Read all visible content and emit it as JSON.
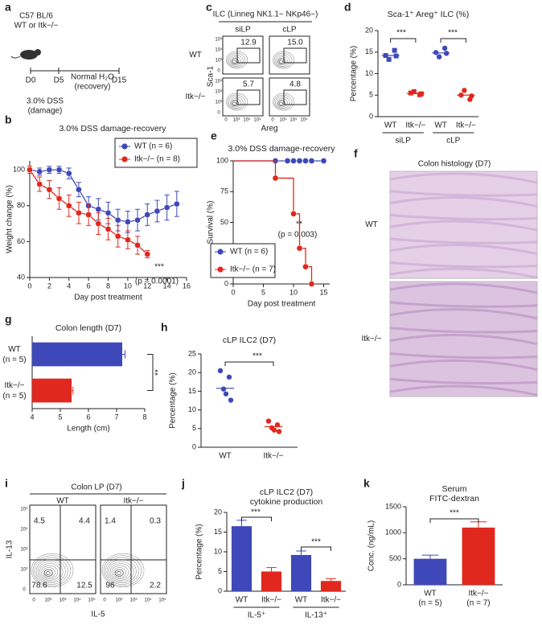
{
  "panel_labels": [
    "a",
    "b",
    "c",
    "d",
    "e",
    "f",
    "g",
    "h",
    "i",
    "j",
    "k"
  ],
  "timeline": {
    "strain": "C57 BL/6",
    "genotype": "WT or Itk−/−",
    "days": [
      "D0",
      "D5",
      "D15"
    ],
    "phases": [
      [
        "3.0% DSS",
        "(damage)"
      ],
      [
        "Normal H₂O",
        "(recovery)"
      ]
    ]
  },
  "flow_c": {
    "title": "ILC (Linneg NK1.1− NKp46−)",
    "columns": [
      "siLP",
      "cLP"
    ],
    "rows": [
      "WT",
      "Itk−/−"
    ],
    "gates": [
      [
        "12.9",
        "15.0"
      ],
      [
        "5.7",
        "4.8"
      ]
    ],
    "y_label": "Sca-1",
    "x_label": "Areg",
    "ticks": [
      "0",
      "10³",
      "10⁴",
      "10⁵"
    ]
  },
  "histology_f": {
    "title": "Colon histology (D7)",
    "rows": [
      "WT",
      "Itk−/−"
    ]
  },
  "flow_i": {
    "title": "Colon LP (D7)",
    "columns": [
      "WT",
      "Itk−/−"
    ],
    "quadrants": [
      [
        "4.5",
        "4.4",
        "78.6",
        "12.5"
      ],
      [
        "1.4",
        "0.3",
        "96",
        "2.2"
      ]
    ],
    "y_label": "IL-13",
    "x_label": "IL-5",
    "ticks": [
      "0",
      "10²",
      "10³",
      "10⁴",
      "10⁵"
    ]
  },
  "chart_data": [
    {
      "type": "line",
      "title": "3.0% DSS damage-recovery",
      "x_label": "Day post treatment",
      "y_label": "Weight change (%)",
      "xlim": [
        0,
        16
      ],
      "xticks": [
        0,
        2,
        4,
        6,
        8,
        10,
        12,
        14,
        16
      ],
      "ylim": [
        40,
        105
      ],
      "yticks": [
        40,
        60,
        80,
        100
      ],
      "legend": "upper right",
      "series": [
        {
          "name": "WT (n = 6)",
          "color": "#3f48b8",
          "x": [
            0,
            1,
            2,
            3,
            4,
            5,
            6,
            7,
            8,
            9,
            10,
            11,
            12,
            13,
            14,
            15
          ],
          "values": [
            100,
            99,
            100,
            100,
            98,
            89,
            80,
            78,
            76,
            72,
            71,
            72,
            75,
            77,
            79,
            81
          ],
          "errors": [
            1,
            2,
            2,
            2,
            3,
            4,
            5,
            6,
            6,
            6,
            6,
            6,
            6,
            6,
            7,
            7
          ]
        },
        {
          "name": "Itk−/− (n = 8)",
          "color": "#e0281e",
          "x": [
            0,
            1,
            2,
            3,
            4,
            5,
            6,
            7,
            8,
            9,
            10,
            11,
            12
          ],
          "values": [
            100,
            92,
            89,
            84,
            80,
            76,
            75,
            70,
            67,
            63,
            61,
            58,
            53
          ],
          "errors": [
            2,
            4,
            5,
            6,
            6,
            6,
            6,
            6,
            6,
            6,
            5,
            5,
            2
          ]
        }
      ],
      "annotations": [
        "***",
        "(p = 0.0001)"
      ]
    },
    {
      "type": "strip",
      "title": "Sca-1⁺ Areg⁺ ILC (%)",
      "y_label": "Percentage (%)",
      "ylim": [
        0,
        20
      ],
      "yticks": [
        0,
        5,
        10,
        15,
        20
      ],
      "categories": [
        "WT",
        "Itk−/−",
        "WT",
        "Itk−/−"
      ],
      "groups": [
        "siLP",
        "cLP"
      ],
      "colors": [
        "#3f48b8",
        "#e0281e",
        "#3f48b8",
        "#e0281e"
      ],
      "markers": [
        "square",
        "square",
        "circle",
        "circle"
      ],
      "points": [
        [
          14.2,
          15.4,
          13.3,
          14.1
        ],
        [
          5.5,
          5.1,
          5.8,
          5.3
        ],
        [
          14.9,
          15.9,
          13.9,
          14.7
        ],
        [
          5.0,
          4.0,
          6.1,
          4.8
        ]
      ],
      "means": [
        14.2,
        5.4,
        14.8,
        5.0
      ],
      "annotations": [
        "***",
        "***"
      ]
    },
    {
      "type": "step",
      "title": "3.0% DSS damage-recovery",
      "x_label": "Day post treatment",
      "y_label": "Survival (%)",
      "xlim": [
        0,
        16
      ],
      "xticks": [
        0,
        5,
        10,
        15
      ],
      "ylim": [
        0,
        100
      ],
      "yticks": [
        0,
        25,
        50,
        75,
        100
      ],
      "legend": "lower left",
      "series": [
        {
          "name": "WT (n = 6)",
          "color": "#3f48b8",
          "x": [
            0,
            7,
            9,
            10,
            11,
            12,
            13,
            15
          ],
          "values": [
            100,
            100,
            100,
            100,
            100,
            100,
            100,
            100
          ]
        },
        {
          "name": "Itk−/− (n = 7)",
          "color": "#e0281e",
          "x": [
            0,
            7,
            10,
            11,
            12,
            13
          ],
          "values": [
            100,
            86,
            57,
            29,
            14,
            0
          ]
        }
      ],
      "annotations": [
        "**",
        "(p = 0.003)"
      ]
    },
    {
      "type": "bar",
      "orientation": "horizontal",
      "title": "Colon length (D7)",
      "x_label": "Length (cm)",
      "xlim": [
        4,
        8
      ],
      "xticks": [
        4,
        5,
        6,
        7,
        8
      ],
      "categories": [
        "WT",
        "Itk−/−"
      ],
      "category_notes": [
        "(n = 5)",
        "(n = 5)"
      ],
      "colors": [
        "#3f48b8",
        "#e0281e"
      ],
      "values": [
        7.2,
        5.4
      ],
      "errors": [
        0.1,
        0.05
      ],
      "annotations": [
        "**"
      ]
    },
    {
      "type": "strip",
      "title": "cLP ILC2 (D7)",
      "y_label": "Percentage (%)",
      "ylim": [
        0,
        25
      ],
      "yticks": [
        0,
        5,
        10,
        15,
        20,
        25
      ],
      "categories": [
        "WT",
        "Itk−/−"
      ],
      "colors": [
        "#3f48b8",
        "#e0281e"
      ],
      "markers": [
        "circle",
        "circle"
      ],
      "points": [
        [
          20.5,
          18.8,
          15.6,
          12.6,
          14.3
        ],
        [
          7.0,
          6.0,
          5.2,
          4.2,
          4.6
        ]
      ],
      "means": [
        15.8,
        5.5
      ],
      "annotations": [
        "***"
      ]
    },
    {
      "type": "bar",
      "title": [
        "cLP ILC2 (D7)",
        "cytokine production"
      ],
      "y_label": "Percentage (%)",
      "ylim": [
        0,
        20
      ],
      "yticks": [
        0,
        5,
        10,
        15,
        20
      ],
      "categories": [
        "WT",
        "Itk−/−",
        "WT",
        "Itk−/−"
      ],
      "groups": [
        "IL-5⁺",
        "IL-13⁺"
      ],
      "colors": [
        "#3f48b8",
        "#e0281e",
        "#3f48b8",
        "#e0281e"
      ],
      "values": [
        16.5,
        5.0,
        9.2,
        2.6
      ],
      "errors": [
        1.5,
        1.0,
        1.0,
        0.6
      ],
      "annotations": [
        "***",
        "***"
      ]
    },
    {
      "type": "bar",
      "title": [
        "Serum",
        "FITC-dextran"
      ],
      "y_label": "Conc. (ng/mL)",
      "ylim": [
        0,
        1500
      ],
      "yticks": [
        0,
        500,
        1000,
        1500
      ],
      "categories": [
        "WT",
        "Itk−/−"
      ],
      "category_notes": [
        "(n = 5)",
        "(n = 7)"
      ],
      "colors": [
        "#3f48b8",
        "#e0281e"
      ],
      "values": [
        500,
        1100
      ],
      "errors": [
        70,
        110
      ],
      "annotations": [
        "***"
      ]
    }
  ]
}
